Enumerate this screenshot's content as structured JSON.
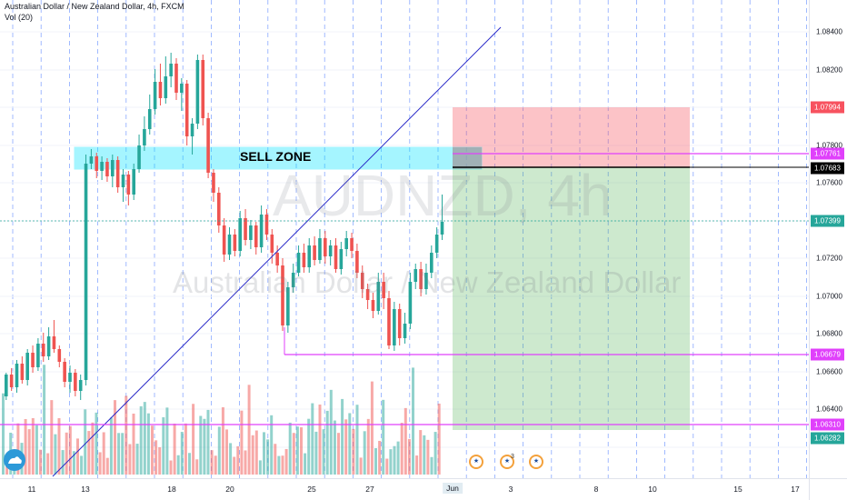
{
  "legend": {
    "title": "Australian Dollar / New Zealand Dollar, 4h, FXCM",
    "volume": "Vol (20)"
  },
  "watermark": {
    "symbol": "AUDNZD, 4h",
    "name": "Australian Dollar / New Zealand Dollar"
  },
  "annotation": {
    "sell_zone": "SELL ZONE"
  },
  "y_axis": {
    "ticks": [
      "1.08400",
      "1.08200",
      "1.07800",
      "1.07600",
      "1.07200",
      "1.07000",
      "1.06800",
      "1.06600",
      "1.06400"
    ],
    "tags": [
      {
        "label": "1.07994",
        "bg": "#f7525f",
        "fg": "#ffffff"
      },
      {
        "label": "1.07761",
        "bg": "#e040fb",
        "fg": "#ffffff"
      },
      {
        "label": "1.07683",
        "bg": "#000000",
        "fg": "#ffffff"
      },
      {
        "label": "1.07399",
        "bg": "#26a69a",
        "fg": "#ffffff"
      },
      {
        "label": "1.06679",
        "bg": "#e040fb",
        "fg": "#ffffff"
      },
      {
        "label": "1.06310",
        "bg": "#e040fb",
        "fg": "#ffffff"
      },
      {
        "label": "1.06282",
        "bg": "#26a69a",
        "fg": "#ffffff"
      }
    ]
  },
  "x_axis": {
    "ticks": [
      "11",
      "13",
      "18",
      "20",
      "25",
      "27",
      "3",
      "8",
      "10",
      "15",
      "17"
    ],
    "highlight": "Jun"
  },
  "events": {
    "count": "3"
  },
  "colors": {
    "bull": "#26a69a",
    "bear": "#ef5350",
    "sell_zone": "#00e5ff",
    "stop_zone": "#f7525f",
    "target_zone": "#4caf50",
    "level_line": "#e040fb",
    "trend_line": "#2a2ac8",
    "entry_line": "#000000"
  },
  "icons": [
    "tradingview-logo-icon",
    "australia-flag-icon"
  ]
}
